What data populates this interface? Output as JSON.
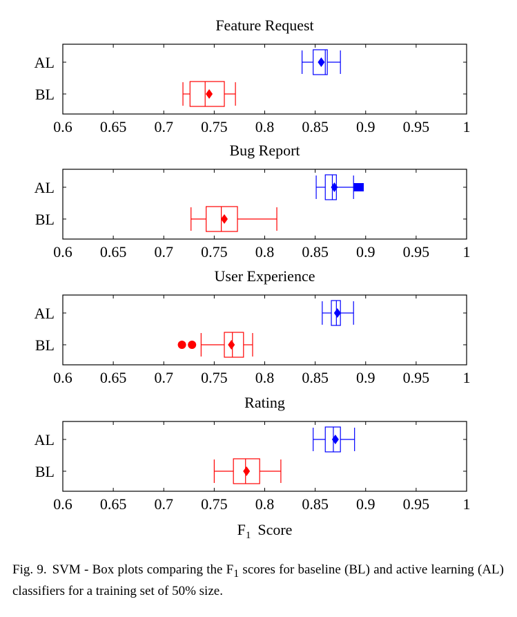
{
  "chart_data": [
    {
      "type": "boxplot",
      "title": "Feature Request",
      "categories": [
        "AL",
        "BL"
      ],
      "xlim": [
        0.6,
        1.0
      ],
      "x_ticks": [
        "0.6",
        "0.65",
        "0.7",
        "0.75",
        "0.8",
        "0.85",
        "0.9",
        "0.95",
        "1"
      ],
      "series": [
        {
          "name": "AL",
          "color": "#0000ff",
          "whisker_low": 0.837,
          "q1": 0.848,
          "median": 0.86,
          "q3": 0.862,
          "whisker_high": 0.875,
          "mean": 0.856,
          "outliers": [],
          "outlier_marker": "square"
        },
        {
          "name": "BL",
          "color": "#ff0000",
          "whisker_low": 0.719,
          "q1": 0.726,
          "median": 0.741,
          "q3": 0.76,
          "whisker_high": 0.771,
          "mean": 0.745,
          "outliers": [],
          "outlier_marker": "circle"
        }
      ]
    },
    {
      "type": "boxplot",
      "title": "Bug Report",
      "categories": [
        "AL",
        "BL"
      ],
      "xlim": [
        0.6,
        1.0
      ],
      "x_ticks": [
        "0.6",
        "0.65",
        "0.7",
        "0.75",
        "0.8",
        "0.85",
        "0.9",
        "0.95",
        "1"
      ],
      "series": [
        {
          "name": "AL",
          "color": "#0000ff",
          "whisker_low": 0.851,
          "q1": 0.86,
          "median": 0.867,
          "q3": 0.871,
          "whisker_high": 0.888,
          "mean": 0.869,
          "outliers": [
            0.892,
            0.894
          ],
          "outlier_marker": "square"
        },
        {
          "name": "BL",
          "color": "#ff0000",
          "whisker_low": 0.727,
          "q1": 0.742,
          "median": 0.757,
          "q3": 0.773,
          "whisker_high": 0.812,
          "mean": 0.76,
          "outliers": [],
          "outlier_marker": "circle"
        }
      ]
    },
    {
      "type": "boxplot",
      "title": "User Experience",
      "categories": [
        "AL",
        "BL"
      ],
      "xlim": [
        0.6,
        1.0
      ],
      "x_ticks": [
        "0.6",
        "0.65",
        "0.7",
        "0.75",
        "0.8",
        "0.85",
        "0.9",
        "0.95",
        "1"
      ],
      "series": [
        {
          "name": "AL",
          "color": "#0000ff",
          "whisker_low": 0.857,
          "q1": 0.866,
          "median": 0.871,
          "q3": 0.875,
          "whisker_high": 0.888,
          "mean": 0.872,
          "outliers": [],
          "outlier_marker": "square"
        },
        {
          "name": "BL",
          "color": "#ff0000",
          "whisker_low": 0.737,
          "q1": 0.76,
          "median": 0.768,
          "q3": 0.779,
          "whisker_high": 0.788,
          "mean": 0.767,
          "outliers": [
            0.718,
            0.728
          ],
          "outlier_marker": "circle"
        }
      ]
    },
    {
      "type": "boxplot",
      "title": "Rating",
      "categories": [
        "AL",
        "BL"
      ],
      "xlim": [
        0.6,
        1.0
      ],
      "x_ticks": [
        "0.6",
        "0.65",
        "0.7",
        "0.75",
        "0.8",
        "0.85",
        "0.9",
        "0.95",
        "1"
      ],
      "series": [
        {
          "name": "AL",
          "color": "#0000ff",
          "whisker_low": 0.848,
          "q1": 0.86,
          "median": 0.868,
          "q3": 0.875,
          "whisker_high": 0.889,
          "mean": 0.87,
          "outliers": [],
          "outlier_marker": "square"
        },
        {
          "name": "BL",
          "color": "#ff0000",
          "whisker_low": 0.75,
          "q1": 0.769,
          "median": 0.781,
          "q3": 0.795,
          "whisker_high": 0.816,
          "mean": 0.782,
          "outliers": [],
          "outlier_marker": "circle"
        }
      ]
    }
  ],
  "x_axis_label": {
    "main": "F",
    "sub": "1",
    "rest": "Score"
  },
  "caption": {
    "label": "Fig. 9.",
    "text_before": "SVM - Box plots comparing the F",
    "sub": "1",
    "text_after": " scores for baseline (BL) and active learning (AL) classifiers for a training set of 50% size."
  }
}
